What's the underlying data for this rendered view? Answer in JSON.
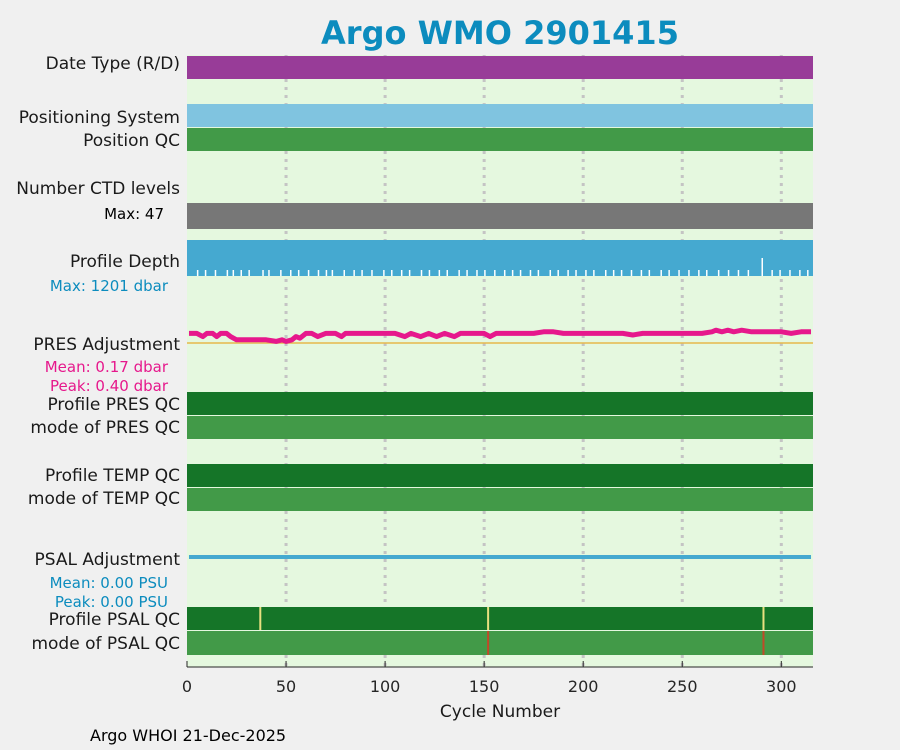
{
  "chart_data": {
    "type": "bar",
    "title": "Argo WMO 2901415",
    "xlabel": "Cycle Number",
    "xlim": [
      0,
      316
    ],
    "xticks": [
      0,
      50,
      100,
      150,
      200,
      250,
      300
    ],
    "footer": "Argo WHOI 21-Dec-2025",
    "colors": {
      "title": "#0c8cbe",
      "background": "#e5f8df",
      "date_type": "#983c98",
      "positioning": "#80c4e0",
      "good_qc": "#429a48",
      "profile_good": "#157528",
      "ctd_levels": "#777777",
      "profile_depth": "#45a9d0",
      "pres_adj": "#e6188c",
      "psal_adj": "#45a9d0",
      "zero_line": "#e6b84c",
      "flag_yellow": "#e8e080",
      "flag_red": "#c04a28"
    },
    "rows": {
      "date_type": "Date Type (R/D)",
      "positioning": "Positioning System",
      "position_qc": "Position QC",
      "ctd_levels": "Number CTD levels",
      "ctd_max": "Max: 47",
      "profile_depth": "Profile Depth",
      "depth_max": "Max: 1201 dbar",
      "pres_adj": "PRES Adjustment",
      "pres_mean": "Mean: 0.17 dbar",
      "pres_peak": "Peak: 0.40 dbar",
      "profile_pres_qc": "Profile PRES QC",
      "mode_pres_qc": "mode of PRES QC",
      "profile_temp_qc": "Profile TEMP QC",
      "mode_temp_qc": "mode of TEMP QC",
      "psal_adj": "PSAL Adjustment",
      "psal_mean": "Mean: 0.00 PSU",
      "psal_peak": "Peak: 0.00 PSU",
      "profile_psal_qc": "Profile PSAL QC",
      "mode_psal_qc": "mode of PSAL QC"
    },
    "series": [
      {
        "name": "PRES Adjustment",
        "unit": "dbar",
        "mean": 0.17,
        "peak": 0.4,
        "points": [
          [
            1,
            0.3
          ],
          [
            5,
            0.3
          ],
          [
            8,
            0.2
          ],
          [
            10,
            0.3
          ],
          [
            13,
            0.3
          ],
          [
            15,
            0.2
          ],
          [
            17,
            0.3
          ],
          [
            20,
            0.3
          ],
          [
            22,
            0.2
          ],
          [
            25,
            0.1
          ],
          [
            30,
            0.1
          ],
          [
            35,
            0.1
          ],
          [
            40,
            0.1
          ],
          [
            45,
            0.05
          ],
          [
            48,
            0.1
          ],
          [
            50,
            0.05
          ],
          [
            53,
            0.1
          ],
          [
            55,
            0.2
          ],
          [
            57,
            0.15
          ],
          [
            60,
            0.3
          ],
          [
            63,
            0.3
          ],
          [
            66,
            0.2
          ],
          [
            70,
            0.3
          ],
          [
            75,
            0.3
          ],
          [
            78,
            0.2
          ],
          [
            80,
            0.3
          ],
          [
            85,
            0.3
          ],
          [
            90,
            0.3
          ],
          [
            95,
            0.3
          ],
          [
            100,
            0.3
          ],
          [
            105,
            0.3
          ],
          [
            110,
            0.2
          ],
          [
            113,
            0.3
          ],
          [
            118,
            0.2
          ],
          [
            122,
            0.3
          ],
          [
            126,
            0.2
          ],
          [
            130,
            0.3
          ],
          [
            135,
            0.2
          ],
          [
            138,
            0.3
          ],
          [
            142,
            0.3
          ],
          [
            146,
            0.3
          ],
          [
            150,
            0.3
          ],
          [
            153,
            0.2
          ],
          [
            156,
            0.3
          ],
          [
            160,
            0.3
          ],
          [
            165,
            0.3
          ],
          [
            170,
            0.3
          ],
          [
            175,
            0.3
          ],
          [
            180,
            0.35
          ],
          [
            185,
            0.35
          ],
          [
            190,
            0.3
          ],
          [
            195,
            0.3
          ],
          [
            200,
            0.3
          ],
          [
            205,
            0.3
          ],
          [
            210,
            0.3
          ],
          [
            215,
            0.3
          ],
          [
            220,
            0.3
          ],
          [
            225,
            0.25
          ],
          [
            230,
            0.3
          ],
          [
            235,
            0.3
          ],
          [
            240,
            0.3
          ],
          [
            245,
            0.3
          ],
          [
            250,
            0.3
          ],
          [
            255,
            0.3
          ],
          [
            260,
            0.3
          ],
          [
            265,
            0.35
          ],
          [
            267,
            0.4
          ],
          [
            270,
            0.35
          ],
          [
            273,
            0.4
          ],
          [
            276,
            0.35
          ],
          [
            280,
            0.4
          ],
          [
            285,
            0.35
          ],
          [
            290,
            0.35
          ],
          [
            295,
            0.35
          ],
          [
            300,
            0.35
          ],
          [
            305,
            0.3
          ],
          [
            310,
            0.35
          ],
          [
            315,
            0.35
          ]
        ]
      },
      {
        "name": "PSAL Adjustment",
        "unit": "PSU",
        "mean": 0.0,
        "peak": 0.0,
        "points": [
          [
            1,
            0
          ],
          [
            50,
            0
          ],
          [
            100,
            0
          ],
          [
            150,
            0
          ],
          [
            200,
            0
          ],
          [
            250,
            0
          ],
          [
            300,
            0
          ],
          [
            315,
            0
          ]
        ]
      }
    ],
    "psal_qc_flags": [
      {
        "cycle": 37,
        "row": "profile",
        "color": "flag_yellow"
      },
      {
        "cycle": 152,
        "row": "profile",
        "color": "flag_yellow"
      },
      {
        "cycle": 152,
        "row": "mode",
        "color": "flag_red"
      },
      {
        "cycle": 291,
        "row": "profile",
        "color": "flag_yellow"
      },
      {
        "cycle": 291,
        "row": "mode",
        "color": "flag_red"
      }
    ],
    "depth_dropouts": [
      5,
      9,
      14,
      20,
      23,
      27,
      31,
      38,
      41,
      47,
      52,
      56,
      61,
      66,
      70,
      73,
      79,
      84,
      88,
      93,
      99,
      103,
      108,
      112,
      118,
      122,
      127,
      131,
      137,
      141,
      146,
      150,
      155,
      160,
      164,
      168,
      173,
      177,
      183,
      187,
      192,
      196,
      201,
      205,
      211,
      215,
      219,
      224,
      229,
      233,
      239,
      243,
      248,
      253,
      258,
      262,
      268,
      273,
      278,
      283,
      290,
      295,
      299,
      304,
      309,
      313
    ]
  }
}
